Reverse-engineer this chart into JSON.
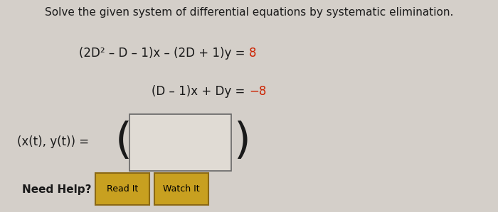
{
  "bg_color": "#d4cfc9",
  "title": "Solve the given system of differential equations by systematic elimination.",
  "eq1_black": "(2D² – D – 1)x – (2D + 1)y = ",
  "eq1_red": "8",
  "eq2_black": "(D – 1)x + Dy = ",
  "eq2_red": "−8",
  "label": "(x(t), y(t)) =",
  "need_help": "Need Help?",
  "btn1": "Read It",
  "btn2": "Watch It",
  "title_fontsize": 11,
  "eq_fontsize": 12,
  "label_fontsize": 12,
  "btn_color": "#c8a020",
  "btn_border": "#8B6914",
  "box_color": "#e0dbd4",
  "text_color": "#1a1a1a",
  "red_color": "#cc2200"
}
